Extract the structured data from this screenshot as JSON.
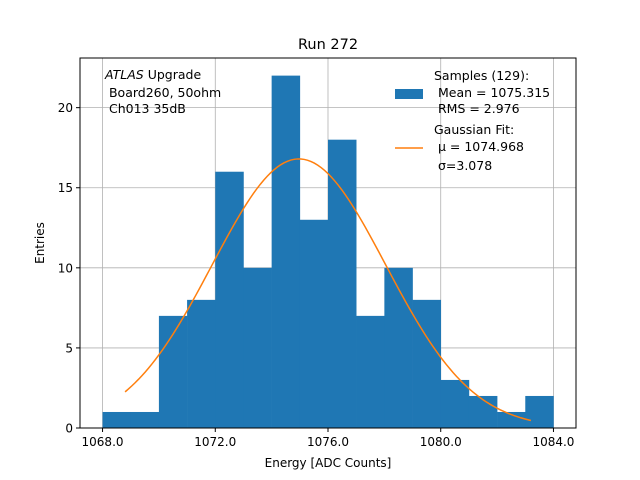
{
  "chart_data": {
    "type": "bar",
    "title": "Run 272",
    "xlabel": "Energy [ADC Counts]",
    "ylabel": "Entries",
    "xlim": [
      1067.2,
      1084.8
    ],
    "ylim": [
      0,
      23.1
    ],
    "grid": true,
    "x_ticks": [
      1068.0,
      1072.0,
      1076.0,
      1080.0,
      1084.0
    ],
    "x_tick_labels": [
      "1068.0",
      "1072.0",
      "1076.0",
      "1080.0",
      "1084.0"
    ],
    "y_ticks": [
      0,
      5,
      10,
      15,
      20
    ],
    "y_tick_labels": [
      "0",
      "5",
      "10",
      "15",
      "20"
    ],
    "bin_edges": [
      1068.0,
      1069.0,
      1070.0,
      1071.0,
      1072.0,
      1073.0,
      1074.0,
      1075.0,
      1076.0,
      1077.0,
      1078.0,
      1079.0,
      1080.0,
      1081.0,
      1082.0,
      1083.0,
      1084.0
    ],
    "values": [
      1,
      1,
      7,
      8,
      16,
      10,
      22,
      13,
      18,
      7,
      10,
      8,
      3,
      2,
      1,
      2
    ],
    "series": [
      {
        "name": "Samples (129):",
        "type": "histogram",
        "color": "#1f77b4"
      },
      {
        "name": "Gaussian Fit:",
        "type": "line",
        "color": "#ff7f0e",
        "amplitude": 16.8,
        "mu": 1074.968,
        "sigma": 3.078,
        "x_range": [
          1068.8,
          1083.2
        ]
      }
    ],
    "annotation": {
      "italic": "ATLAS",
      "line1_rest": " Upgrade",
      "line2": " Board260, 50ohm",
      "line3": " Ch013 35dB"
    },
    "legend": {
      "position": "top-right",
      "samples_title": "Samples (129):",
      "samples_mean": " Mean = 1075.315",
      "samples_rms": " RMS = 2.976",
      "fit_title": "Gaussian Fit:",
      "fit_mu": " μ = 1074.968",
      "fit_sigma": " σ=3.078"
    }
  }
}
